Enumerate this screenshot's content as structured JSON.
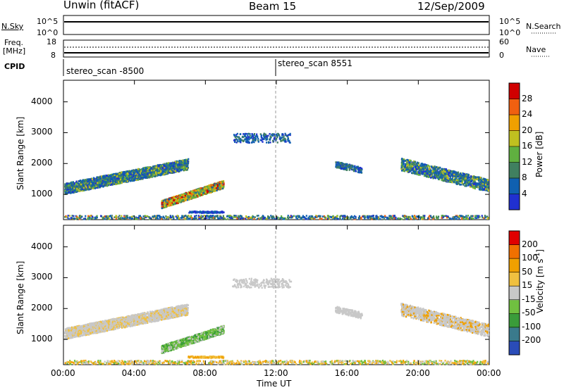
{
  "header": {
    "station": "Unwin (fitACF)",
    "beam": "Beam 15",
    "date": "12/Sep/2009"
  },
  "left_labels": {
    "nsky": "N.Sky",
    "nsky_hi": "10^5",
    "nsky_lo": "10^0",
    "freq_line1": "Freq.",
    "freq_line2": "[MHz]",
    "freq_hi": "18",
    "freq_lo": "8",
    "cpid": "CPID"
  },
  "right_labels": {
    "nsearch": "N.Search",
    "nsearch_hi": "10^5",
    "nsearch_lo": "10^0",
    "nave": "Nave",
    "nave_hi": "60",
    "nave_lo": "0"
  },
  "cpid_segments": [
    {
      "label": "stereo_scan -8500",
      "start_hour": 0
    },
    {
      "label": "stereo_scan 8551",
      "start_hour": 12
    }
  ],
  "chart_data": [
    {
      "type": "heatmap",
      "name": "power",
      "ylabel": "Slant Range [km]",
      "y_ticks": [
        1000,
        2000,
        3000,
        4000
      ],
      "ylim": [
        180,
        4700
      ],
      "x_ticks": [
        "00:00",
        "04:00",
        "08:00",
        "12:00",
        "16:00",
        "20:00",
        "00:00"
      ],
      "xlim_hours": [
        0,
        24
      ],
      "colorbar_label": "Power [dB]",
      "colorbar_ticks": [
        "4",
        "8",
        "12",
        "16",
        "20",
        "24",
        "28"
      ],
      "colorbar_colors": [
        "#2030d0",
        "#1060b0",
        "#408060",
        "#60b040",
        "#c0c020",
        "#f0a000",
        "#f06010",
        "#d00000"
      ]
    },
    {
      "type": "heatmap",
      "name": "velocity",
      "ylabel": "Slant Range [km]",
      "y_ticks": [
        1000,
        2000,
        3000,
        4000
      ],
      "ylim": [
        180,
        4700
      ],
      "x_ticks": [
        "00:00",
        "04:00",
        "08:00",
        "12:00",
        "16:00",
        "20:00",
        "00:00"
      ],
      "xlabel": "Time UT",
      "xlim_hours": [
        0,
        24
      ],
      "colorbar_label": "Velocity [m s^-1]",
      "colorbar_ticks": [
        "200",
        "100",
        "50",
        "15",
        "-15",
        "-50",
        "-100",
        "-200"
      ],
      "colorbar_colors": [
        "#2a4cb8",
        "#3a7a8c",
        "#3a9c3a",
        "#70c040",
        "#c8c8c8",
        "#f0c040",
        "#f0a000",
        "#f07000",
        "#e00000"
      ]
    }
  ]
}
